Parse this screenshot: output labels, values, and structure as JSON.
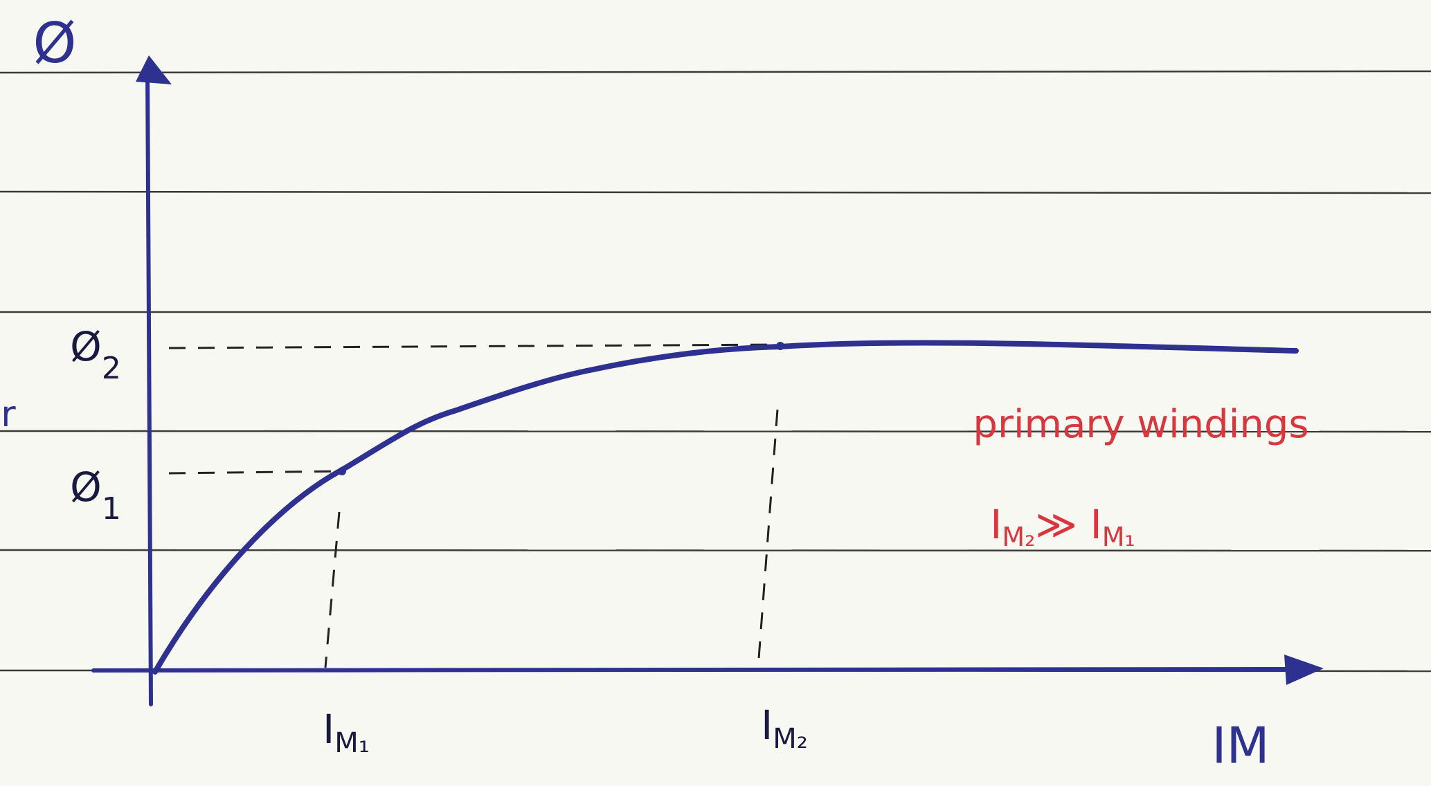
{
  "y_axis": {
    "label": "Ø"
  },
  "x_axis": {
    "label": "IM"
  },
  "y_marks": [
    {
      "base": "Ø",
      "sub": "1"
    },
    {
      "base": "Ø",
      "sub": "2"
    }
  ],
  "x_marks": [
    {
      "base": "I",
      "sub": "M₁"
    },
    {
      "base": "I",
      "sub": "M₂"
    }
  ],
  "note": {
    "line1": "primary windings",
    "line2": "I",
    "line2_sub_a": "M₂",
    "line2_rel": "≫ I",
    "line2_sub_b": "M₁"
  },
  "margin_text": "r"
}
